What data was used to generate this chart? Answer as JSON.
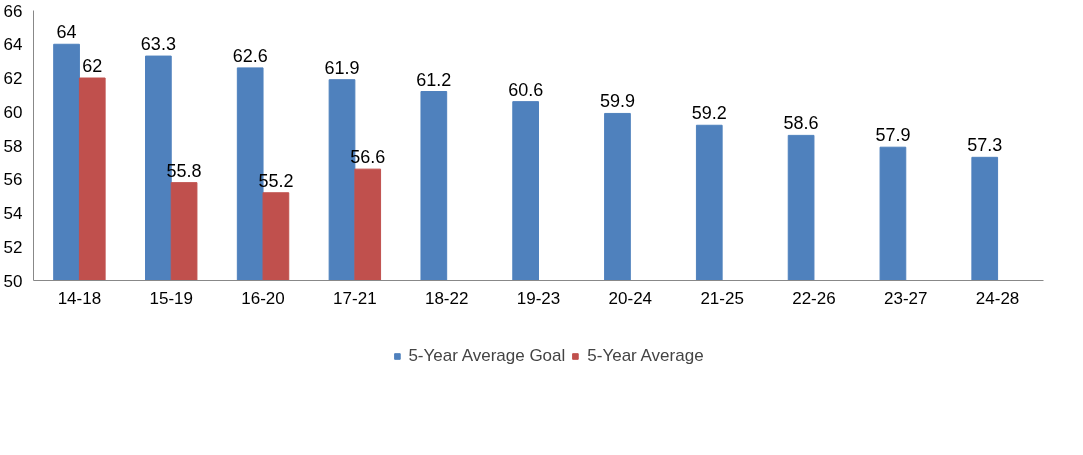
{
  "chart_data": {
    "type": "bar",
    "categories": [
      "14-18",
      "15-19",
      "16-20",
      "17-21",
      "18-22",
      "19-23",
      "20-24",
      "21-25",
      "22-26",
      "23-27",
      "24-28"
    ],
    "series": [
      {
        "name": "5-Year Average Goal",
        "color": "#4f81bd",
        "values": [
          64,
          63.3,
          62.6,
          61.9,
          61.2,
          60.6,
          59.9,
          59.2,
          58.6,
          57.9,
          57.3
        ]
      },
      {
        "name": "5-Year Average",
        "color": "#c0504d",
        "values": [
          62,
          55.8,
          55.2,
          56.6,
          null,
          null,
          null,
          null,
          null,
          null,
          null
        ]
      }
    ],
    "ylim": [
      50,
      66
    ],
    "yticks": [
      50,
      52,
      54,
      56,
      58,
      60,
      62,
      64,
      66
    ],
    "grid": false,
    "legend": "bottom",
    "data_labels": true
  }
}
